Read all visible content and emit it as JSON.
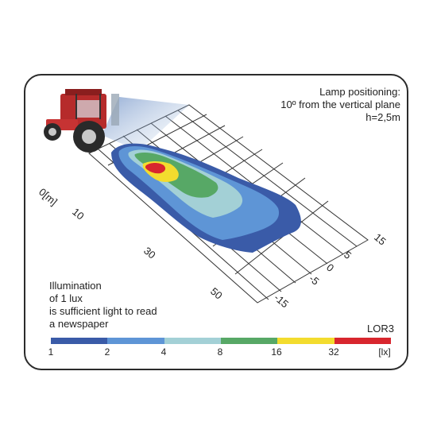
{
  "lamp": {
    "line1": "Lamp positioning:",
    "line2": "10º from the vertical plane",
    "line3": "h=2,5m"
  },
  "note": {
    "line1": "Illumination",
    "line2": "of 1 lux",
    "line3": "is sufficient light to read",
    "line4": "a newspaper"
  },
  "model": "LOR3",
  "axis_x": {
    "origin": "0[m]",
    "ticks": [
      "10",
      "30",
      "50"
    ]
  },
  "axis_y": {
    "ticks": [
      "15",
      "5",
      "0",
      "-5",
      "-15"
    ]
  },
  "legend": {
    "ticks": [
      "1",
      "2",
      "4",
      "8",
      "16",
      "32",
      "[lx]"
    ],
    "colors": [
      "#3a5ba8",
      "#5e95d6",
      "#a3d0d6",
      "#57a866",
      "#f3dc2e",
      "#d8262e"
    ]
  },
  "zone_colors": {
    "z1": "#3a5ba8",
    "z2": "#5e95d6",
    "z3": "#a3d0d6",
    "z4": "#57a866",
    "z5": "#f3dc2e",
    "z6": "#d8262e"
  }
}
